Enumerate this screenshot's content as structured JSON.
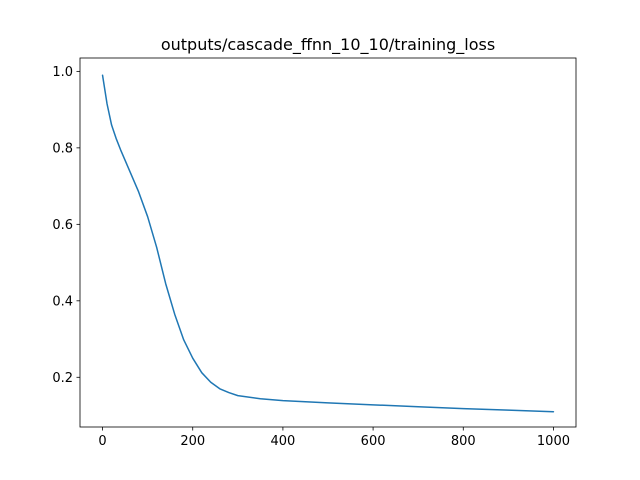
{
  "chart_data": {
    "type": "line",
    "title": "outputs/cascade_ffnn_10_10/training_loss",
    "xlabel": "",
    "ylabel": "",
    "xlim": [
      -50,
      1050
    ],
    "ylim": [
      0.07,
      1.035
    ],
    "x_ticks": [
      0,
      200,
      400,
      600,
      800,
      1000
    ],
    "y_ticks": [
      0.2,
      0.4,
      0.6,
      0.8,
      1.0
    ],
    "x_tick_labels": [
      "0",
      "200",
      "400",
      "600",
      "800",
      "1000"
    ],
    "y_tick_labels": [
      "0.2",
      "0.4",
      "0.6",
      "0.8",
      "1.0"
    ],
    "grid": false,
    "legend": "none",
    "series": [
      {
        "color": "#1f77b4",
        "x": [
          0,
          10,
          20,
          30,
          40,
          60,
          80,
          100,
          120,
          140,
          160,
          180,
          200,
          220,
          240,
          260,
          280,
          300,
          350,
          400,
          500,
          600,
          700,
          800,
          900,
          1000
        ],
        "y": [
          0.99,
          0.915,
          0.86,
          0.825,
          0.795,
          0.74,
          0.685,
          0.62,
          0.54,
          0.445,
          0.365,
          0.298,
          0.25,
          0.212,
          0.187,
          0.17,
          0.16,
          0.152,
          0.144,
          0.139,
          0.133,
          0.128,
          0.123,
          0.118,
          0.114,
          0.11
        ]
      }
    ]
  }
}
